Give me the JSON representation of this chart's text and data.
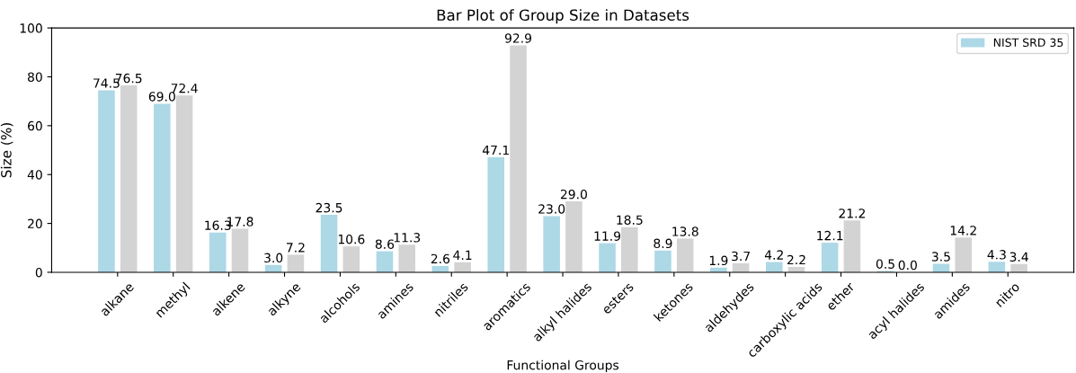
{
  "chart_data": {
    "type": "bar",
    "title": "Bar Plot of Group Size in Datasets",
    "xlabel": "Functional Groups",
    "ylabel": "Size (%)",
    "categories": [
      "alkane",
      "methyl",
      "alkene",
      "alkyne",
      "alcohols",
      "amines",
      "nitriles",
      "aromatics",
      "alkyl halides",
      "esters",
      "ketones",
      "aldehydes",
      "carboxylic acids",
      "ether",
      "acyl halides",
      "amides",
      "nitro"
    ],
    "series": [
      {
        "name": "NIST SRD 35",
        "color": "#add8e6",
        "values": [
          74.5,
          69,
          16.3,
          3,
          23.5,
          8.6,
          2.6,
          47.1,
          23,
          11.9,
          8.9,
          1.9,
          4.2,
          12.1,
          0.5,
          3.5,
          4.3
        ],
        "value_labels": [
          "74.5",
          "69.0",
          "16.3",
          "3.0",
          "23.5",
          "8.6",
          "2.6",
          "47.1",
          "23.0",
          "11.9",
          "8.9",
          "1.9",
          "4.2",
          "12.1",
          "0.5",
          "3.5",
          "4.3"
        ]
      },
      {
        "color": "#d3d3d3",
        "values": [
          76.5,
          72.4,
          17.8,
          7.2,
          10.6,
          11.3,
          4.1,
          92.9,
          29,
          18.5,
          13.8,
          3.7,
          2.2,
          21.2,
          0,
          14.2,
          3.4
        ],
        "value_labels": [
          "76.5",
          "72.4",
          "17.8",
          "7.2",
          "10.6",
          "11.3",
          "4.1",
          "92.9",
          "29.0",
          "18.5",
          "13.8",
          "3.7",
          "2.2",
          "21.2",
          "0.0",
          "14.2",
          "3.4"
        ]
      }
    ],
    "ylim": [
      0,
      100
    ],
    "yticks": [
      0,
      20,
      40,
      60,
      80,
      100
    ],
    "legend": "top right"
  }
}
